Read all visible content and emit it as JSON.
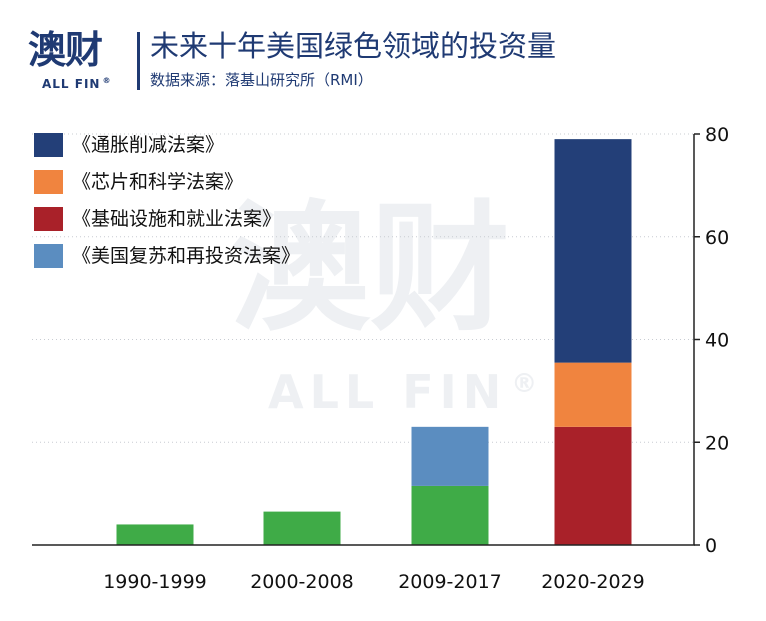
{
  "header": {
    "logo_cn": "澳财",
    "logo_en": "ALL FIN",
    "logo_reg": "®",
    "title": "未来十年美国绿色领域的投资量",
    "subtitle": "数据来源：落基山研究所（RMI）"
  },
  "watermark": {
    "cn": "澳财",
    "en": "ALL FIN",
    "reg": "®"
  },
  "colors": {
    "navy": "#233f78",
    "orange": "#f0843f",
    "red": "#a92129",
    "blue": "#5b8dc0",
    "green": "#3fab47"
  },
  "chart_data": {
    "type": "bar",
    "stacked": true,
    "categories": [
      "1990-1999",
      "2000-2008",
      "2009-2017",
      "2020-2029"
    ],
    "series": [
      {
        "name": "",
        "color": "#3fab47",
        "values": [
          4,
          6.5,
          11.5,
          0
        ]
      },
      {
        "name": "《美国复苏和再投资法案》",
        "color": "#5b8dc0",
        "values": [
          0,
          0,
          11.5,
          0
        ]
      },
      {
        "name": "《基础设施和就业法案》",
        "color": "#a92129",
        "values": [
          0,
          0,
          0,
          23
        ]
      },
      {
        "name": "《芯片和科学法案》",
        "color": "#f0843f",
        "values": [
          0,
          0,
          0,
          12.5
        ]
      },
      {
        "name": "《通胀削减法案》",
        "color": "#233f78",
        "values": [
          0,
          0,
          0,
          43.5
        ]
      }
    ],
    "legend": [
      {
        "label": "《通胀削减法案》",
        "color": "#233f78"
      },
      {
        "label": "《芯片和科学法案》",
        "color": "#f0843f"
      },
      {
        "label": "《基础设施和就业法案》",
        "color": "#a92129"
      },
      {
        "label": "《美国复苏和再投资法案》",
        "color": "#5b8dc0"
      }
    ],
    "legend_position": "top-left",
    "y_axis_position": "right",
    "ylim": [
      0,
      80
    ],
    "yticks": [
      0,
      20,
      40,
      60,
      80
    ],
    "ytick_labels": [
      "0",
      "20",
      "40",
      "60",
      "80"
    ],
    "grid": "horizontal-dotted",
    "title": "",
    "xlabel": "",
    "ylabel": ""
  }
}
